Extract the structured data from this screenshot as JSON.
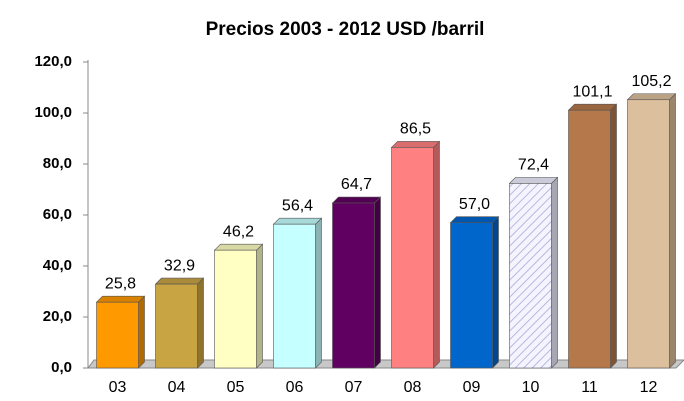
{
  "chart_data": {
    "type": "bar",
    "title": "Precios 2003 - 2012 USD /barril",
    "categories": [
      "03",
      "04",
      "05",
      "06",
      "07",
      "08",
      "09",
      "10",
      "11",
      "12"
    ],
    "values": [
      25.8,
      32.9,
      46.2,
      56.4,
      64.7,
      86.5,
      57.0,
      72.4,
      101.1,
      105.2
    ],
    "value_labels": [
      "25,8",
      "32,9",
      "46,2",
      "56,4",
      "64,7",
      "86,5",
      "57,0",
      "72,4",
      "101,1",
      "105,2"
    ],
    "colors": [
      "#ff9900",
      "#c9a443",
      "#ffffc4",
      "#c6ffff",
      "#600060",
      "#ff8080",
      "#0066cc",
      "#eeeeff",
      "#b5784a",
      "#dcbf9c"
    ],
    "ylim": [
      0,
      120
    ],
    "yticks": [
      {
        "value": 0,
        "label": "0,0"
      },
      {
        "value": 20,
        "label": "20,0"
      },
      {
        "value": 40,
        "label": "40,0"
      },
      {
        "value": 60,
        "label": "60,0"
      },
      {
        "value": 80,
        "label": "80,0"
      },
      {
        "value": 100,
        "label": "100,0"
      },
      {
        "value": 120,
        "label": "120,0"
      }
    ],
    "grid": false
  }
}
